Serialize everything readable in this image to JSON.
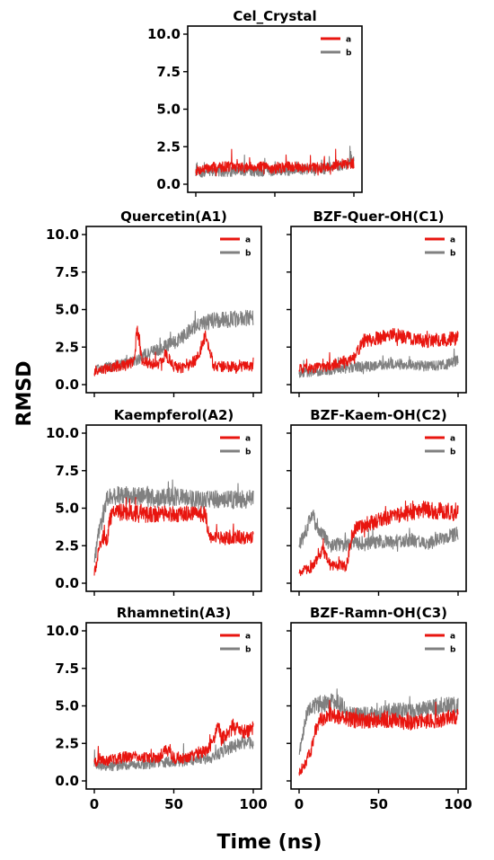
{
  "figure": {
    "ylabel": "RMSD",
    "xlabel": "Time (ns)"
  },
  "chart_data": [
    {
      "type": "line",
      "title": "Cel_Crystal",
      "xlim": [
        0,
        100
      ],
      "ylim": [
        0,
        10
      ],
      "xticks": [],
      "yticks": [
        "0.0",
        "2.5",
        "5.0",
        "7.5",
        "10.0"
      ],
      "x": [
        0,
        10,
        20,
        30,
        40,
        50,
        60,
        70,
        80,
        90,
        100
      ],
      "legend": "top-right",
      "series": [
        {
          "name": "a",
          "color": "#e8150f",
          "values": [
            0.9,
            1.1,
            1.2,
            1.1,
            1.2,
            1.0,
            1.2,
            1.1,
            1.1,
            1.3,
            1.4
          ]
        },
        {
          "name": "b",
          "color": "#808080",
          "values": [
            0.7,
            0.9,
            0.8,
            0.9,
            0.8,
            0.9,
            0.9,
            1.0,
            1.0,
            1.2,
            1.5
          ]
        }
      ]
    },
    {
      "type": "line",
      "title": "Quercetin(A1)",
      "xlim": [
        0,
        100
      ],
      "ylim": [
        0,
        10
      ],
      "xticks": [],
      "yticks": [
        "0.0",
        "2.5",
        "5.0",
        "7.5",
        "10.0"
      ],
      "x": [
        0,
        5,
        10,
        15,
        20,
        25,
        27,
        30,
        35,
        40,
        45,
        50,
        55,
        60,
        65,
        70,
        75,
        80,
        90,
        100
      ],
      "legend": "top-right",
      "series": [
        {
          "name": "a",
          "color": "#e8150f",
          "values": [
            0.9,
            1.0,
            1.1,
            1.2,
            1.3,
            1.5,
            3.8,
            1.6,
            1.4,
            1.3,
            2.0,
            1.2,
            1.1,
            1.3,
            1.8,
            3.3,
            1.3,
            1.2,
            1.2,
            1.2
          ]
        },
        {
          "name": "b",
          "color": "#808080",
          "values": [
            1.0,
            1.1,
            1.2,
            1.3,
            1.4,
            1.6,
            1.7,
            1.9,
            2.1,
            2.3,
            2.6,
            2.8,
            3.1,
            3.6,
            3.9,
            4.1,
            4.3,
            4.3,
            4.4,
            4.5
          ]
        }
      ]
    },
    {
      "type": "line",
      "title": "BZF-Quer-OH(C1)",
      "xlim": [
        0,
        100
      ],
      "ylim": [
        0,
        10
      ],
      "xticks": [],
      "yticks": [],
      "x": [
        0,
        10,
        20,
        30,
        35,
        40,
        50,
        60,
        70,
        80,
        90,
        100
      ],
      "legend": "top-right",
      "series": [
        {
          "name": "a",
          "color": "#e8150f",
          "values": [
            1.0,
            1.1,
            1.3,
            1.6,
            1.8,
            2.9,
            3.1,
            3.3,
            3.1,
            2.9,
            3.0,
            3.1
          ]
        },
        {
          "name": "b",
          "color": "#808080",
          "values": [
            0.8,
            0.9,
            1.0,
            1.1,
            1.2,
            1.2,
            1.3,
            1.4,
            1.3,
            1.2,
            1.3,
            1.6
          ]
        }
      ]
    },
    {
      "type": "line",
      "title": "Kaempferol(A2)",
      "xlim": [
        0,
        100
      ],
      "ylim": [
        0,
        10
      ],
      "xticks": [],
      "yticks": [
        "0.0",
        "2.5",
        "5.0",
        "7.5",
        "10.0"
      ],
      "x": [
        0,
        3,
        5,
        8,
        10,
        12,
        20,
        30,
        40,
        50,
        60,
        70,
        72,
        75,
        80,
        90,
        100
      ],
      "legend": "top-right",
      "series": [
        {
          "name": "a",
          "color": "#e8150f",
          "values": [
            0.6,
            2.3,
            3.1,
            2.9,
            4.4,
            4.7,
            4.7,
            4.6,
            4.6,
            4.6,
            4.6,
            4.6,
            3.2,
            3.1,
            3.0,
            3.1,
            3.0
          ]
        },
        {
          "name": "b",
          "color": "#808080",
          "values": [
            1.6,
            3.5,
            4.2,
            5.8,
            5.7,
            5.8,
            5.9,
            5.8,
            5.6,
            5.8,
            5.6,
            5.5,
            5.6,
            5.6,
            5.5,
            5.6,
            5.6
          ]
        }
      ]
    },
    {
      "type": "line",
      "title": "BZF-Kaem-OH(C2)",
      "xlim": [
        0,
        100
      ],
      "ylim": [
        0,
        10
      ],
      "xticks": [],
      "yticks": [],
      "x": [
        0,
        5,
        8,
        10,
        15,
        20,
        25,
        30,
        33,
        35,
        40,
        50,
        60,
        70,
        80,
        90,
        100
      ],
      "legend": "top-right",
      "series": [
        {
          "name": "a",
          "color": "#e8150f",
          "values": [
            0.8,
            0.9,
            1.0,
            1.4,
            2.2,
            1.1,
            1.2,
            1.1,
            3.2,
            3.6,
            3.8,
            4.2,
            4.4,
            4.7,
            4.9,
            4.8,
            4.7
          ]
        },
        {
          "name": "b",
          "color": "#808080",
          "values": [
            2.5,
            3.6,
            4.8,
            4.1,
            3.2,
            2.5,
            2.6,
            2.6,
            2.7,
            2.7,
            2.6,
            2.8,
            2.7,
            2.9,
            2.6,
            3.0,
            3.3
          ]
        }
      ]
    },
    {
      "type": "line",
      "title": "Rhamnetin(A3)",
      "xlim": [
        0,
        100
      ],
      "ylim": [
        0,
        10
      ],
      "xticks": [
        "0",
        "50",
        "100"
      ],
      "yticks": [
        "0.0",
        "2.5",
        "5.0",
        "7.5",
        "10.0"
      ],
      "x": [
        0,
        10,
        20,
        30,
        40,
        45,
        50,
        55,
        60,
        70,
        75,
        78,
        80,
        85,
        90,
        95,
        100
      ],
      "legend": "top-right",
      "series": [
        {
          "name": "a",
          "color": "#e8150f",
          "values": [
            1.3,
            1.4,
            1.6,
            1.6,
            1.5,
            2.2,
            1.5,
            1.5,
            1.6,
            2.0,
            2.6,
            4.0,
            2.8,
            3.2,
            3.5,
            3.3,
            3.5
          ]
        },
        {
          "name": "b",
          "color": "#808080",
          "values": [
            1.0,
            1.0,
            1.1,
            1.1,
            1.2,
            1.2,
            1.3,
            1.3,
            1.4,
            1.5,
            1.6,
            1.8,
            1.9,
            2.2,
            2.4,
            2.6,
            2.5
          ]
        }
      ]
    },
    {
      "type": "line",
      "title": "BZF-Ramn-OH(C3)",
      "xlim": [
        0,
        100
      ],
      "ylim": [
        0,
        10
      ],
      "xticks": [
        "0",
        "50",
        "100"
      ],
      "yticks": [],
      "x": [
        0,
        3,
        5,
        8,
        10,
        12,
        15,
        20,
        25,
        30,
        40,
        50,
        60,
        70,
        80,
        90,
        100
      ],
      "legend": "top-right",
      "series": [
        {
          "name": "a",
          "color": "#e8150f",
          "values": [
            0.6,
            1.0,
            1.4,
            2.2,
            3.2,
            3.8,
            4.2,
            4.4,
            4.2,
            4.1,
            4.0,
            4.1,
            4.0,
            3.9,
            4.0,
            4.1,
            4.3
          ]
        },
        {
          "name": "b",
          "color": "#808080",
          "values": [
            1.8,
            3.4,
            4.5,
            4.9,
            5.0,
            5.1,
            5.1,
            5.2,
            5.3,
            4.5,
            4.4,
            4.4,
            4.7,
            4.6,
            4.8,
            5.0,
            5.1
          ]
        }
      ]
    }
  ]
}
